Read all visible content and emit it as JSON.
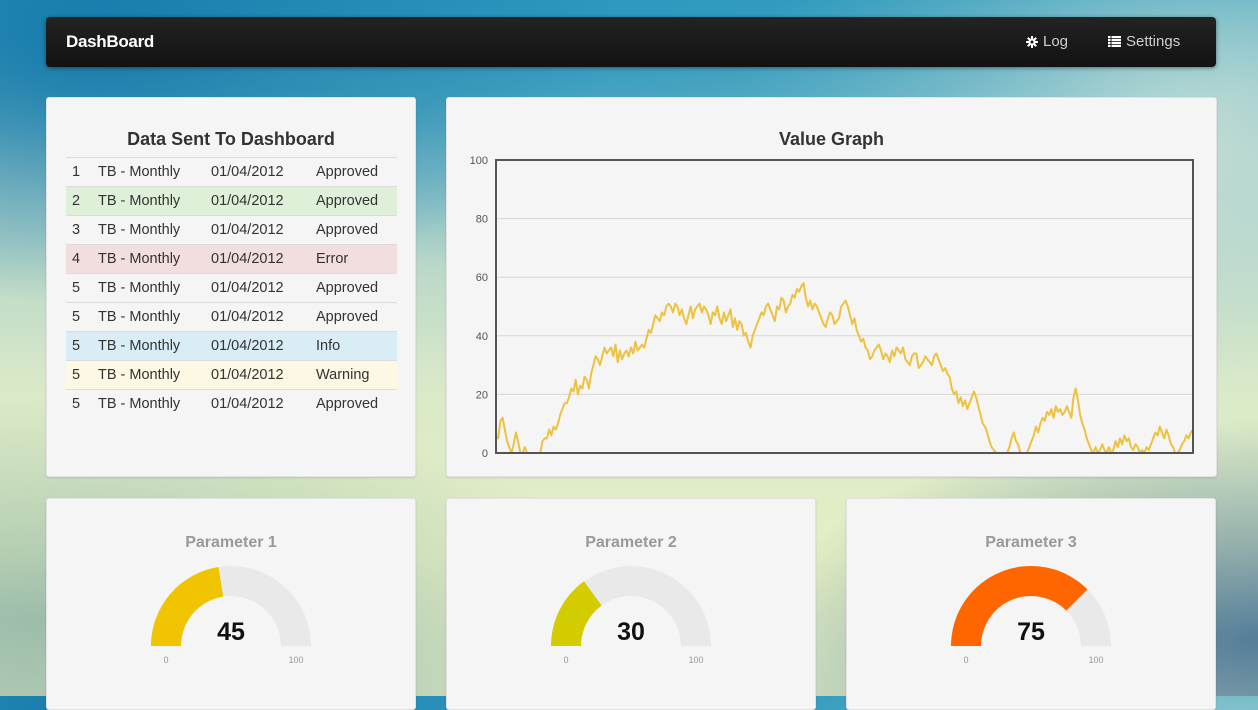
{
  "navbar": {
    "brand": "DashBoard",
    "items": [
      {
        "label": "Log",
        "icon": "gear-icon"
      },
      {
        "label": "Settings",
        "icon": "list-icon"
      }
    ]
  },
  "table_panel": {
    "title": "Data Sent To Dashboard",
    "rows": [
      {
        "num": "1",
        "name": "TB - Monthly",
        "date": "01/04/2012",
        "status": "Approved",
        "style": ""
      },
      {
        "num": "2",
        "name": "TB - Monthly",
        "date": "01/04/2012",
        "status": "Approved",
        "style": "success"
      },
      {
        "num": "3",
        "name": "TB - Monthly",
        "date": "01/04/2012",
        "status": "Approved",
        "style": ""
      },
      {
        "num": "4",
        "name": "TB - Monthly",
        "date": "01/04/2012",
        "status": "Error",
        "style": "error"
      },
      {
        "num": "5",
        "name": "TB - Monthly",
        "date": "01/04/2012",
        "status": "Approved",
        "style": ""
      },
      {
        "num": "5",
        "name": "TB - Monthly",
        "date": "01/04/2012",
        "status": "Approved",
        "style": ""
      },
      {
        "num": "5",
        "name": "TB - Monthly",
        "date": "01/04/2012",
        "status": "Info",
        "style": "info"
      },
      {
        "num": "5",
        "name": "TB - Monthly",
        "date": "01/04/2012",
        "status": "Warning",
        "style": "warning"
      },
      {
        "num": "5",
        "name": "TB - Monthly",
        "date": "01/04/2012",
        "status": "Approved",
        "style": ""
      }
    ]
  },
  "graph_panel": {
    "title": "Value Graph"
  },
  "chart_data": {
    "type": "line",
    "title": "Value Graph",
    "ylim": [
      0,
      100
    ],
    "yticks": [
      0,
      20,
      40,
      60,
      80,
      100
    ],
    "color": "#edc240",
    "series": [
      {
        "values": [
          6,
          5,
          11,
          12,
          8,
          4,
          2,
          0,
          3,
          7,
          4,
          0,
          0,
          2,
          0,
          0,
          0,
          0,
          0,
          0,
          0,
          4,
          5,
          5,
          8,
          6,
          9,
          8,
          10,
          13,
          15,
          17,
          17,
          19,
          22,
          21,
          25,
          20,
          23,
          22,
          26,
          25,
          22,
          27,
          30,
          33,
          32,
          30,
          33,
          36,
          34,
          35,
          36,
          33,
          37,
          31,
          35,
          32,
          34,
          35,
          33,
          36,
          34,
          38,
          35,
          36,
          37,
          36,
          39,
          42,
          41,
          44,
          47,
          46,
          45,
          48,
          47,
          50,
          51,
          50,
          48,
          51,
          50,
          47,
          49,
          46,
          44,
          47,
          50,
          46,
          49,
          50,
          51,
          48,
          50,
          49,
          47,
          44,
          48,
          47,
          50,
          46,
          44,
          48,
          45,
          47,
          49,
          43,
          46,
          42,
          45,
          44,
          40,
          41,
          38,
          36,
          40,
          42,
          44,
          46,
          48,
          47,
          50,
          51,
          49,
          47,
          45,
          50,
          49,
          53,
          52,
          48,
          50,
          51,
          54,
          53,
          56,
          55,
          57,
          58,
          53,
          50,
          52,
          49,
          51,
          50,
          48,
          46,
          44,
          43,
          46,
          48,
          47,
          44,
          45,
          46,
          50,
          51,
          52,
          50,
          47,
          44,
          46,
          42,
          40,
          38,
          39,
          36,
          35,
          32,
          33,
          35,
          36,
          37,
          35,
          32,
          34,
          33,
          31,
          35,
          33,
          36,
          35,
          34,
          36,
          32,
          31,
          30,
          33,
          34,
          34,
          29,
          30,
          31,
          33,
          32,
          31,
          30,
          33,
          34,
          32,
          30,
          28,
          29,
          27,
          26,
          22,
          20,
          21,
          17,
          19,
          16,
          18,
          15,
          17,
          19,
          21,
          19,
          16,
          13,
          10,
          9,
          7,
          4,
          2,
          1,
          0,
          0,
          0,
          0,
          0,
          0,
          2,
          5,
          7,
          4,
          3,
          0,
          0,
          0,
          0,
          2,
          4,
          6,
          9,
          7,
          10,
          12,
          11,
          14,
          13,
          15,
          12,
          16,
          14,
          15,
          13,
          14,
          16,
          14,
          12,
          19,
          22,
          18,
          13,
          10,
          8,
          5,
          3,
          1,
          0,
          2,
          0,
          1,
          3,
          1,
          0,
          2,
          0,
          1,
          4,
          2,
          5,
          3,
          6,
          4,
          5,
          2,
          1,
          3,
          2,
          0,
          1,
          0,
          2,
          1,
          3,
          5,
          7,
          6,
          9,
          7,
          5,
          8,
          6,
          3,
          2,
          0,
          0,
          1,
          3,
          4,
          6,
          5,
          7,
          8
        ]
      }
    ]
  },
  "gauges": [
    {
      "title": "Parameter 1",
      "value": 45,
      "min": 0,
      "max": 100,
      "color": "#f0c400"
    },
    {
      "title": "Parameter 2",
      "value": 30,
      "min": 0,
      "max": 100,
      "color": "#d3cc00"
    },
    {
      "title": "Parameter 3",
      "value": 75,
      "min": 0,
      "max": 100,
      "color": "#ff6600"
    }
  ]
}
